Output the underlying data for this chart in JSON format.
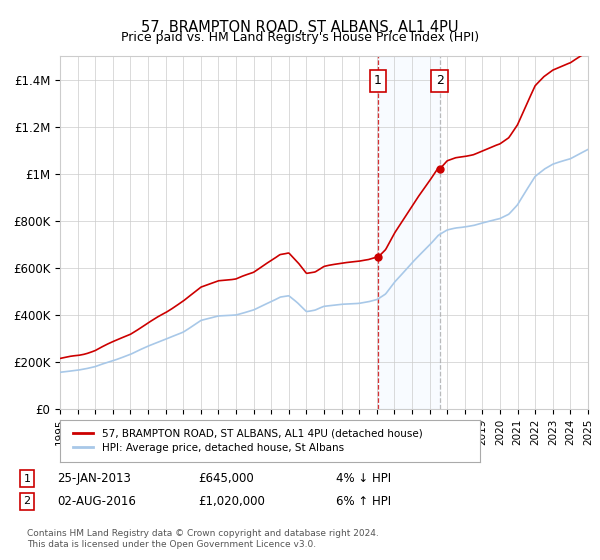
{
  "title1": "57, BRAMPTON ROAD, ST ALBANS, AL1 4PU",
  "title2": "Price paid vs. HM Land Registry's House Price Index (HPI)",
  "ylim": [
    0,
    1500000
  ],
  "yticks": [
    0,
    200000,
    400000,
    600000,
    800000,
    1000000,
    1200000,
    1400000
  ],
  "ytick_labels": [
    "£0",
    "£200K",
    "£400K",
    "£600K",
    "£800K",
    "£1M",
    "£1.2M",
    "£1.4M"
  ],
  "year_start": 1995,
  "year_end": 2025,
  "transaction1_year": 2013.07,
  "transaction1_value": 645000,
  "transaction2_year": 2016.58,
  "transaction2_value": 1020000,
  "hpi_color": "#a8c8e8",
  "price_color": "#cc0000",
  "background_color": "#ffffff",
  "grid_color": "#cccccc",
  "shade_color": "#ddeeff",
  "legend_label1": "57, BRAMPTON ROAD, ST ALBANS, AL1 4PU (detached house)",
  "legend_label2": "HPI: Average price, detached house, St Albans",
  "transaction1_date": "25-JAN-2013",
  "transaction1_price": "£645,000",
  "transaction1_pct": "4% ↓ HPI",
  "transaction2_date": "02-AUG-2016",
  "transaction2_price": "£1,020,000",
  "transaction2_pct": "6% ↑ HPI",
  "footnote": "Contains HM Land Registry data © Crown copyright and database right 2024.\nThis data is licensed under the Open Government Licence v3.0."
}
